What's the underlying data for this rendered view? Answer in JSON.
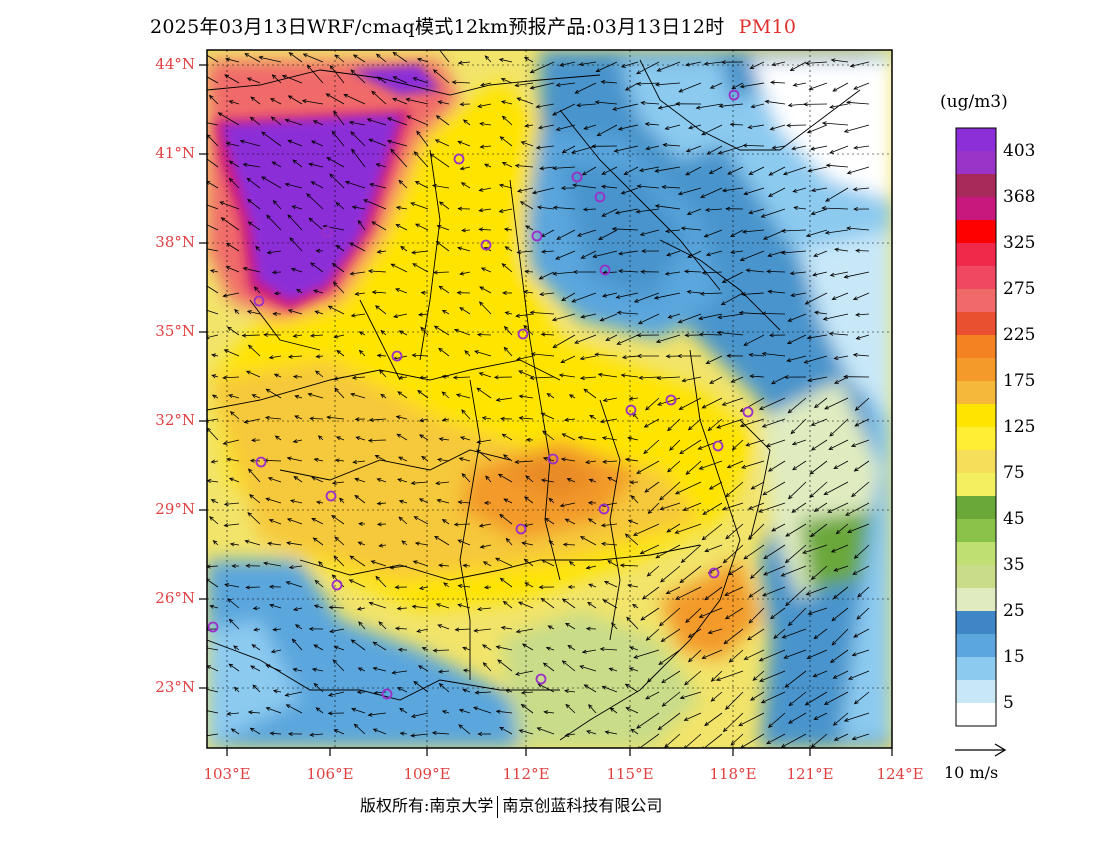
{
  "header": {
    "title": "2025年03月13日WRF/cmaq模式12km预报产品:03月13日12时",
    "pollutant": "PM10"
  },
  "map": {
    "lat_labels": [
      "44°N",
      "41°N",
      "38°N",
      "35°N",
      "32°N",
      "29°N",
      "26°N",
      "23°N"
    ],
    "lon_labels": [
      "103°E",
      "106°E",
      "109°E",
      "112°E",
      "115°E",
      "118°E",
      "121°E",
      "124°E"
    ]
  },
  "legend": {
    "unit": "(ug/m3)",
    "levels": [
      {
        "label": "403",
        "color": "#8c2fd8"
      },
      {
        "label": "",
        "color": "#9a34c8"
      },
      {
        "label": "368",
        "color": "#a82a5a"
      },
      {
        "label": "",
        "color": "#c8177d"
      },
      {
        "label": "325",
        "color": "#ff0000"
      },
      {
        "label": "",
        "color": "#f0284a"
      },
      {
        "label": "275",
        "color": "#f04860"
      },
      {
        "label": "",
        "color": "#f06a6a"
      },
      {
        "label": "225",
        "color": "#e85030"
      },
      {
        "label": "",
        "color": "#f58220"
      },
      {
        "label": "175",
        "color": "#f39a2a"
      },
      {
        "label": "",
        "color": "#f6b83a"
      },
      {
        "label": "125",
        "color": "#ffe400"
      },
      {
        "label": "",
        "color": "#ffee33"
      },
      {
        "label": "75",
        "color": "#f4de5a"
      },
      {
        "label": "",
        "color": "#f2f060"
      },
      {
        "label": "45",
        "color": "#6aa83a"
      },
      {
        "label": "",
        "color": "#8ac24a"
      },
      {
        "label": "35",
        "color": "#bfe070"
      },
      {
        "label": "",
        "color": "#c8dc8a"
      },
      {
        "label": "25",
        "color": "#e0ecc0"
      },
      {
        "label": "",
        "color": "#3f86c6"
      },
      {
        "label": "15",
        "color": "#5aa6dd"
      },
      {
        "label": "",
        "color": "#8ccaf0"
      },
      {
        "label": "5",
        "color": "#c8e8f8"
      },
      {
        "label": "",
        "color": "#ffffff"
      }
    ],
    "wind_scale": "10 m/s"
  },
  "footer": {
    "copyright": "版权所有:南京大学",
    "company": "南京创蓝科技有限公司"
  }
}
